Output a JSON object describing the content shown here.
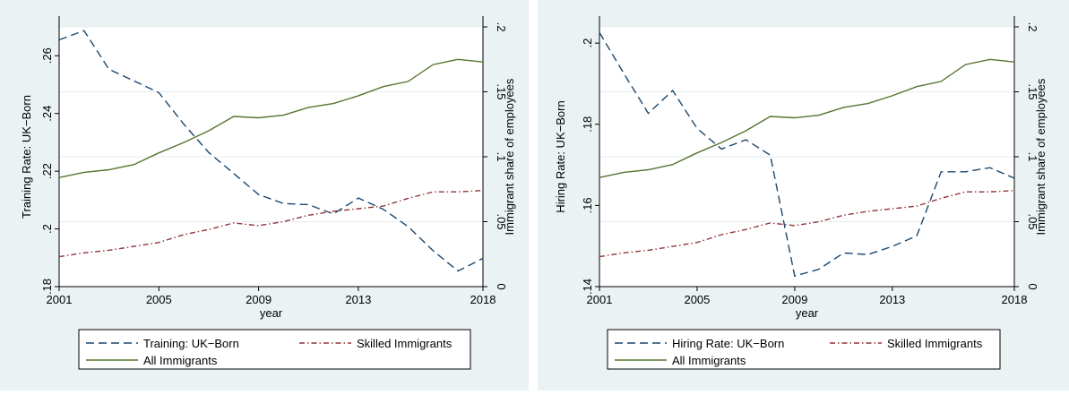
{
  "colors": {
    "outer_bg": "#eaf2f3",
    "plot_bg": "#ffffff",
    "grid": "#e6eced",
    "axis": "#000000",
    "uk_born": "#1a476f",
    "skilled": "#90353b",
    "all_imm": "#55752f"
  },
  "chart_data": [
    {
      "type": "line",
      "xlabel": "year",
      "ylabel_left": "Training Rate: UK−Born",
      "ylabel_right": "Immigrant share of employees",
      "xlim": [
        2001,
        2018
      ],
      "ylim_left": [
        0.18,
        0.27
      ],
      "ylim_right": [
        0,
        0.2
      ],
      "x_ticks": [
        "2001",
        "2005",
        "2009",
        "2013",
        "2018"
      ],
      "left_ticks": [
        ".18",
        ".2",
        ".22",
        ".24",
        ".26"
      ],
      "right_ticks": [
        "0",
        ".05",
        ".1",
        ".15",
        ".2"
      ],
      "grid": true,
      "legend_placement": "bottom",
      "x": [
        2001,
        2002,
        2003,
        2004,
        2005,
        2006,
        2007,
        2008,
        2009,
        2010,
        2011,
        2012,
        2013,
        2014,
        2015,
        2016,
        2017,
        2018
      ],
      "series": [
        {
          "name": "Training: UK−Born",
          "axis": "left",
          "style": "dash",
          "values": [
            0.2655,
            0.2687,
            0.2553,
            0.2513,
            0.2472,
            0.2363,
            0.2265,
            0.2192,
            0.2119,
            0.2088,
            0.2084,
            0.2052,
            0.2107,
            0.2068,
            0.2008,
            0.1924,
            0.1854,
            0.1898
          ]
        },
        {
          "name": "Skilled Immigrants",
          "axis": "right",
          "style": "dashdot",
          "values": [
            0.023,
            0.026,
            0.028,
            0.031,
            0.034,
            0.04,
            0.044,
            0.049,
            0.047,
            0.05,
            0.055,
            0.058,
            0.06,
            0.062,
            0.068,
            0.073,
            0.073,
            0.074
          ]
        },
        {
          "name": "All Immigrants",
          "axis": "right",
          "style": "solid",
          "values": [
            0.084,
            0.088,
            0.09,
            0.094,
            0.103,
            0.111,
            0.12,
            0.131,
            0.13,
            0.132,
            0.138,
            0.141,
            0.147,
            0.154,
            0.158,
            0.171,
            0.175,
            0.173
          ]
        }
      ],
      "legend": [
        "Training: UK−Born",
        "Skilled Immigrants",
        "All Immigrants"
      ]
    },
    {
      "type": "line",
      "xlabel": "year",
      "ylabel_left": "Hiring Rate: UK−Born",
      "ylabel_right": "Immigrant share of employees",
      "xlim": [
        2001,
        2018
      ],
      "ylim_left": [
        0.14,
        0.204
      ],
      "ylim_right": [
        0,
        0.2
      ],
      "x_ticks": [
        "2001",
        "2005",
        "2009",
        "2013",
        "2018"
      ],
      "left_ticks": [
        ".14",
        ".16",
        ".18",
        ".2"
      ],
      "right_ticks": [
        "0",
        ".05",
        ".1",
        ".15",
        ".2"
      ],
      "grid": true,
      "legend_placement": "bottom",
      "x": [
        2001,
        2002,
        2003,
        2004,
        2005,
        2006,
        2007,
        2008,
        2009,
        2010,
        2011,
        2012,
        2013,
        2014,
        2015,
        2016,
        2017,
        2018
      ],
      "series": [
        {
          "name": "Hiring Rate: UK−Born",
          "axis": "left",
          "style": "dash",
          "values": [
            0.2026,
            0.1925,
            0.1827,
            0.1883,
            0.179,
            0.1739,
            0.1762,
            0.1724,
            0.1426,
            0.1443,
            0.1483,
            0.1479,
            0.1499,
            0.1525,
            0.1683,
            0.1683,
            0.1693,
            0.1667
          ]
        },
        {
          "name": "Skilled Immigrants",
          "axis": "right",
          "style": "dashdot",
          "values": [
            0.023,
            0.026,
            0.028,
            0.031,
            0.034,
            0.04,
            0.044,
            0.049,
            0.047,
            0.05,
            0.055,
            0.058,
            0.06,
            0.062,
            0.068,
            0.073,
            0.073,
            0.074
          ]
        },
        {
          "name": "All Immigrants",
          "axis": "right",
          "style": "solid",
          "values": [
            0.084,
            0.088,
            0.09,
            0.094,
            0.103,
            0.111,
            0.12,
            0.131,
            0.13,
            0.132,
            0.138,
            0.141,
            0.147,
            0.154,
            0.158,
            0.171,
            0.175,
            0.173
          ]
        }
      ],
      "legend": [
        "Hiring Rate: UK−Born",
        "Skilled Immigrants",
        "All Immigrants"
      ]
    }
  ]
}
